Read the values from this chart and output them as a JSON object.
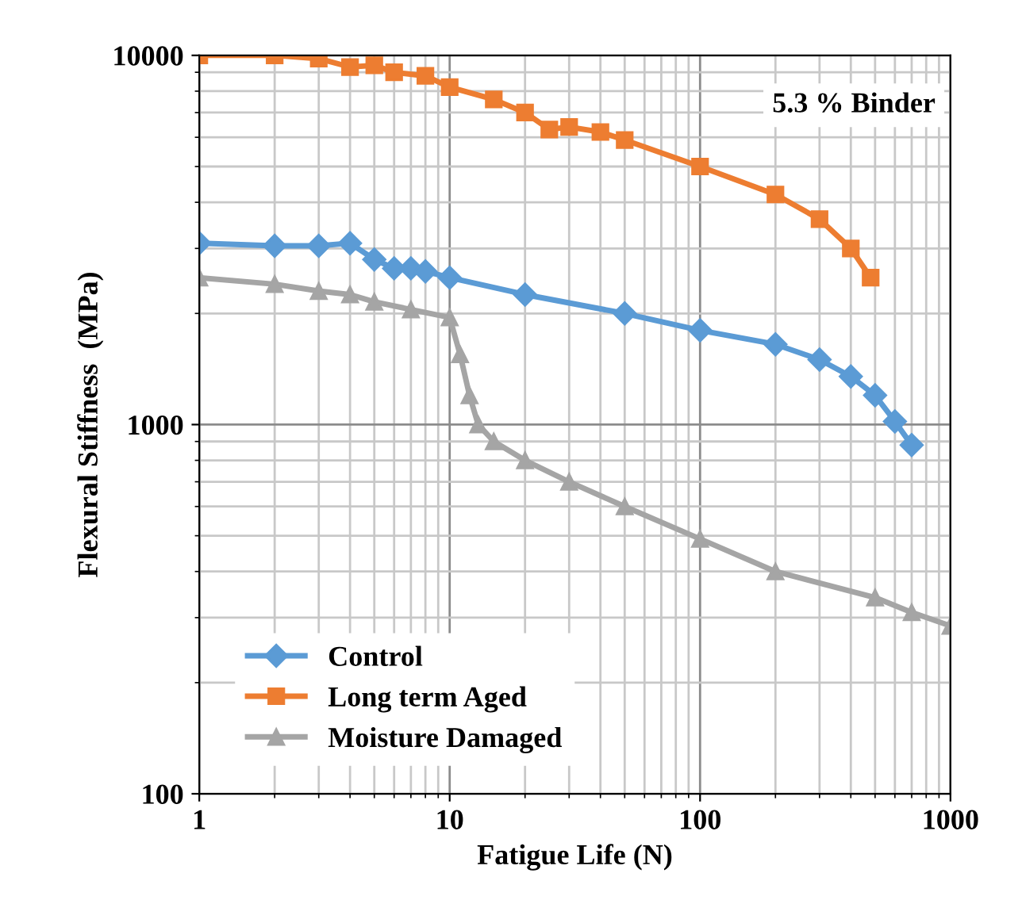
{
  "chart_data": {
    "type": "line",
    "xlabel": "Fatigue Life (N)",
    "ylabel": "Flexural Stiffness  (MPa)",
    "log": "xy",
    "xlim": [
      1,
      1000
    ],
    "ylim": [
      100,
      10000
    ],
    "xticks": [
      1,
      10,
      100,
      1000
    ],
    "yticks": [
      100,
      1000,
      10000
    ],
    "grid": true,
    "legend": "bottom left",
    "line_style": "solid",
    "annotations": [
      "5.3 % Binder"
    ],
    "series": [
      {
        "name": "Control",
        "color": "#5b9bd5",
        "marker": "diamond",
        "x": [
          1,
          2,
          3,
          4,
          5,
          6,
          7,
          8,
          10,
          20,
          50,
          100,
          200,
          300,
          400,
          500,
          600,
          700
        ],
        "values": [
          3100,
          3050,
          3050,
          3100,
          2800,
          2650,
          2650,
          2600,
          2500,
          2250,
          2000,
          1800,
          1650,
          1500,
          1350,
          1200,
          1020,
          880
        ]
      },
      {
        "name": "Long term Aged",
        "color": "#ed7d31",
        "marker": "square",
        "x": [
          1,
          2,
          3,
          4,
          5,
          6,
          8,
          10,
          15,
          20,
          25,
          30,
          40,
          50,
          100,
          200,
          300,
          400,
          480
        ],
        "values": [
          10000,
          10000,
          9800,
          9300,
          9400,
          9000,
          8800,
          8200,
          7600,
          7000,
          6300,
          6400,
          6200,
          5900,
          5000,
          4200,
          3600,
          3000,
          2500
        ]
      },
      {
        "name": "Moisture Damaged",
        "color": "#a5a5a5",
        "marker": "triangle",
        "x": [
          1,
          2,
          3,
          4,
          5,
          7,
          10,
          11,
          12,
          13,
          15,
          20,
          30,
          50,
          100,
          200,
          500,
          700,
          1000
        ],
        "values": [
          2500,
          2400,
          2300,
          2250,
          2150,
          2050,
          1950,
          1550,
          1200,
          1000,
          900,
          800,
          700,
          600,
          490,
          400,
          340,
          310,
          285
        ]
      }
    ]
  }
}
